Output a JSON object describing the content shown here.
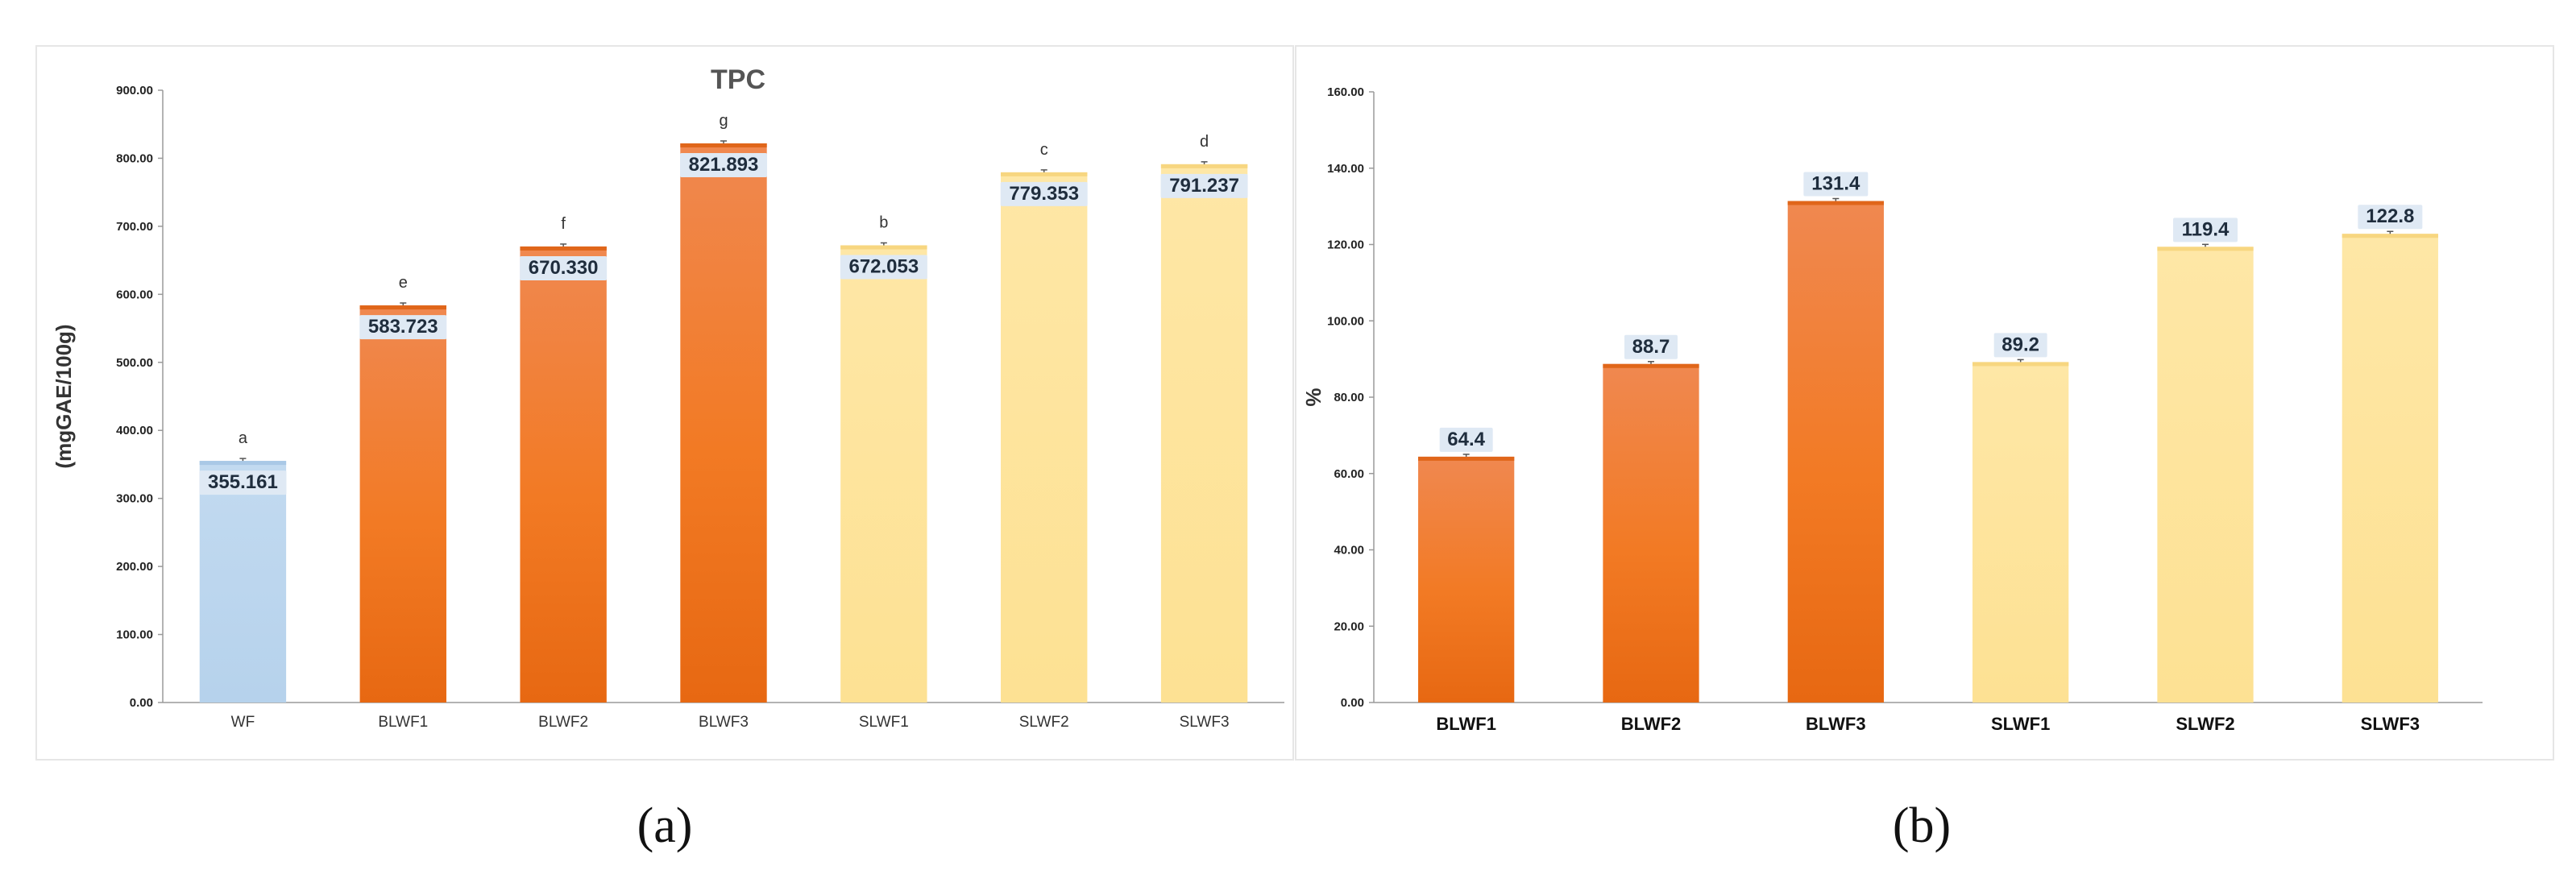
{
  "chart_data": [
    {
      "type": "bar",
      "panel_label": "(a)",
      "title": "TPC",
      "xlabel": "",
      "ylabel": "(mgGAE/100g)",
      "ylim": [
        0,
        900
      ],
      "yticks": [
        "0.00",
        "100.00",
        "200.00",
        "300.00",
        "400.00",
        "500.00",
        "600.00",
        "700.00",
        "800.00",
        "900.00"
      ],
      "categories": [
        "WF",
        "BLWF1",
        "BLWF2",
        "BLWF3",
        "SLWF1",
        "SLWF2",
        "SLWF3"
      ],
      "values": [
        355.161,
        583.723,
        670.33,
        821.893,
        672.053,
        779.353,
        791.237
      ],
      "value_labels": [
        "355.161",
        "583.723",
        "670.330",
        "821.893",
        "672.053",
        "779.353",
        "791.237"
      ],
      "significance_letters": [
        "a",
        "e",
        "f",
        "g",
        "b",
        "c",
        "d"
      ],
      "bar_colors": [
        "#bcd6ee",
        "#ee7828",
        "#ee7828",
        "#ee7828",
        "#fde49a",
        "#fde49a",
        "#fde49a"
      ],
      "grid": false,
      "legend": "none"
    },
    {
      "type": "bar",
      "panel_label": "(b)",
      "title": "",
      "xlabel": "",
      "ylabel": "%",
      "ylim": [
        0,
        160
      ],
      "yticks": [
        "0.00",
        "20.00",
        "40.00",
        "60.00",
        "80.00",
        "100.00",
        "120.00",
        "140.00",
        "160.00"
      ],
      "categories": [
        "BLWF1",
        "BLWF2",
        "BLWF3",
        "SLWF1",
        "SLWF2",
        "SLWF3"
      ],
      "values": [
        64.4,
        88.7,
        131.4,
        89.2,
        119.4,
        122.8
      ],
      "value_labels": [
        "64.4",
        "88.7",
        "131.4",
        "89.2",
        "119.4",
        "122.8"
      ],
      "bar_colors": [
        "#ee7828",
        "#ee7828",
        "#ee7828",
        "#fde49a",
        "#fde49a",
        "#fde49a"
      ],
      "grid": false,
      "legend": "none"
    }
  ]
}
